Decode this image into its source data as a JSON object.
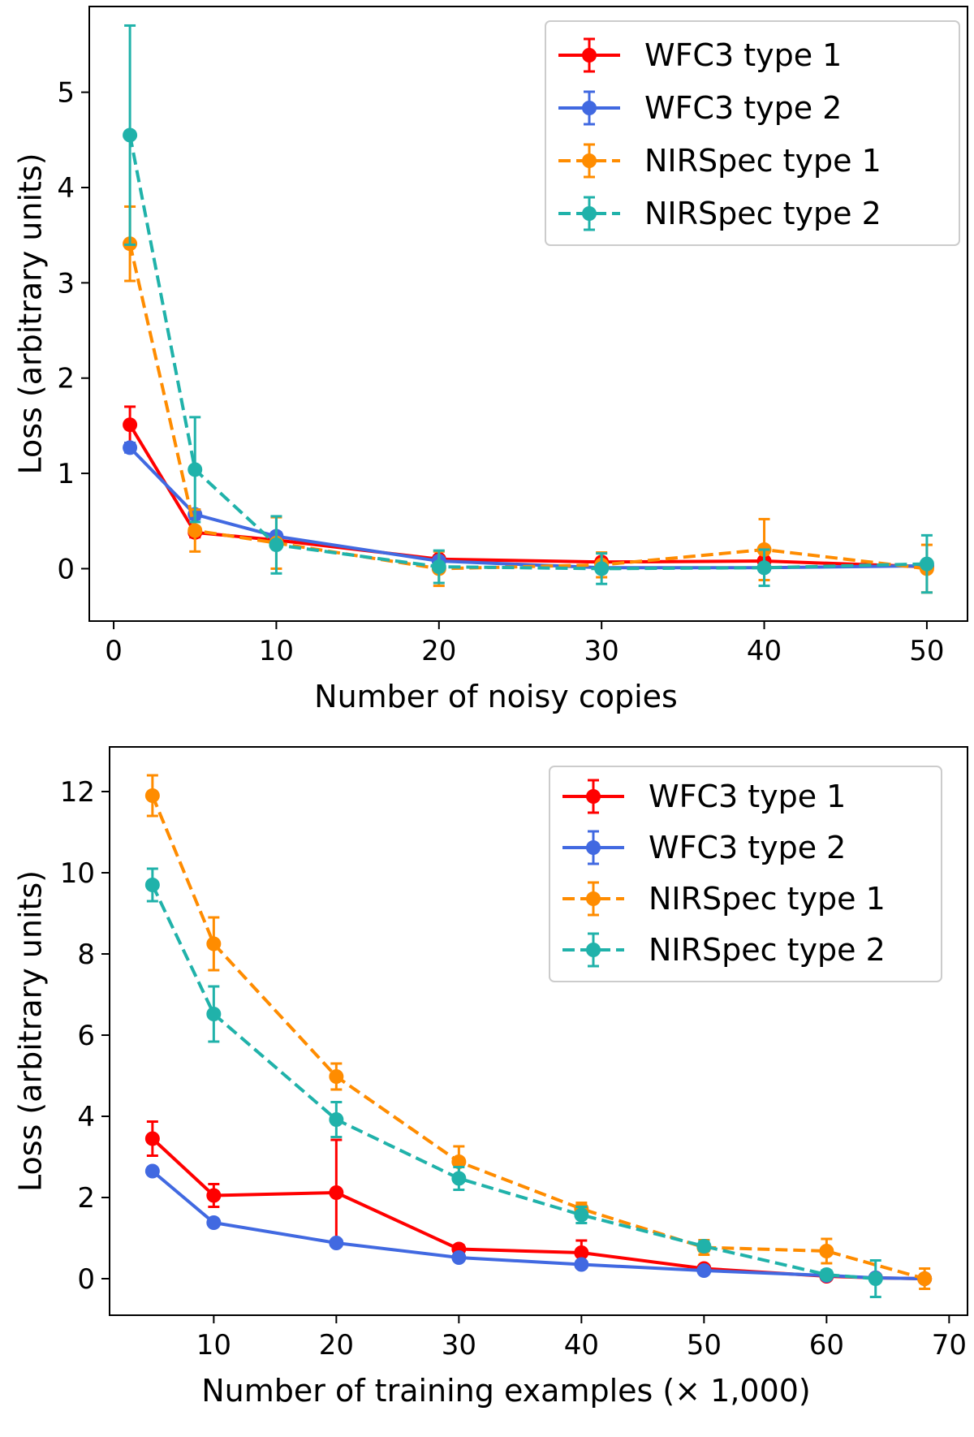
{
  "chart_data": [
    {
      "type": "line",
      "title": "",
      "xlabel": "Number of noisy copies",
      "ylabel": "Loss (arbitrary units)",
      "xlim": [
        -1.5,
        52.5
      ],
      "ylim": [
        -0.55,
        5.9
      ],
      "xticks": [
        0,
        10,
        20,
        30,
        40,
        50
      ],
      "yticks": [
        0,
        1,
        2,
        3,
        4,
        5
      ],
      "legend": "top-right",
      "series": [
        {
          "name": "WFC3 type 1",
          "color": "#ff0000",
          "style": "solid",
          "x": [
            1,
            5,
            10,
            20,
            30,
            40,
            50
          ],
          "y": [
            1.51,
            0.38,
            0.3,
            0.1,
            0.07,
            0.08,
            0.02
          ],
          "err": [
            0.19,
            0.05,
            0.04,
            0.03,
            0.03,
            0.03,
            0.02
          ]
        },
        {
          "name": "WFC3 type 2",
          "color": "#4169e1",
          "style": "solid",
          "x": [
            1,
            5,
            10,
            20,
            30,
            40,
            50
          ],
          "y": [
            1.27,
            0.57,
            0.34,
            0.08,
            0.01,
            0.01,
            0.03
          ],
          "err": [
            0.05,
            0.05,
            0.04,
            0.03,
            0.02,
            0.02,
            0.02
          ]
        },
        {
          "name": "NIRSpec type 1",
          "color": "#ff8c00",
          "style": "dashed",
          "x": [
            1,
            5,
            10,
            20,
            30,
            40,
            50
          ],
          "y": [
            3.41,
            0.4,
            0.27,
            0.0,
            0.04,
            0.2,
            0.0
          ],
          "err": [
            0.39,
            0.22,
            0.27,
            0.18,
            0.13,
            0.32,
            0.25
          ]
        },
        {
          "name": "NIRSpec type 2",
          "color": "#20b2aa",
          "style": "dashed",
          "x": [
            1,
            5,
            10,
            20,
            30,
            40,
            50
          ],
          "y": [
            4.55,
            1.04,
            0.25,
            0.02,
            0.0,
            0.01,
            0.05
          ],
          "err": [
            1.15,
            0.55,
            0.3,
            0.17,
            0.16,
            0.19,
            0.3
          ]
        }
      ]
    },
    {
      "type": "line",
      "title": "",
      "xlabel": "Number of training examples (× 1,000)",
      "ylabel": "Loss (arbitrary units)",
      "xlim": [
        1.5,
        71.5
      ],
      "ylim": [
        -0.9,
        13.1
      ],
      "xticks": [
        10,
        20,
        30,
        40,
        50,
        60,
        70
      ],
      "yticks": [
        0,
        2,
        4,
        6,
        8,
        10,
        12
      ],
      "legend": "top-right",
      "series": [
        {
          "name": "WFC3 type 1",
          "color": "#ff0000",
          "style": "solid",
          "x": [
            5,
            10,
            20,
            30,
            40,
            50,
            60,
            64,
            68
          ],
          "y": [
            3.45,
            2.05,
            2.12,
            0.73,
            0.64,
            0.25,
            0.06,
            0.02,
            0.0
          ],
          "err": [
            0.42,
            0.28,
            1.3,
            0.1,
            0.3,
            0.05,
            0.05,
            0.03,
            0.03
          ]
        },
        {
          "name": "WFC3 type 2",
          "color": "#4169e1",
          "style": "solid",
          "x": [
            5,
            10,
            20,
            30,
            40,
            50,
            60,
            64,
            68
          ],
          "y": [
            2.65,
            1.38,
            0.88,
            0.52,
            0.35,
            0.2,
            0.08,
            0.02,
            0.0
          ],
          "err": [
            0.05,
            0.05,
            0.05,
            0.05,
            0.05,
            0.05,
            0.05,
            0.03,
            0.03
          ]
        },
        {
          "name": "NIRSpec type 1",
          "color": "#ff8c00",
          "style": "dashed",
          "x": [
            5,
            10,
            20,
            30,
            40,
            50,
            60,
            68
          ],
          "y": [
            11.9,
            8.25,
            4.98,
            2.88,
            1.72,
            0.77,
            0.68,
            0.0
          ],
          "err": [
            0.5,
            0.65,
            0.32,
            0.38,
            0.15,
            0.18,
            0.3,
            0.25
          ]
        },
        {
          "name": "NIRSpec type 2",
          "color": "#20b2aa",
          "style": "dashed",
          "x": [
            5,
            10,
            20,
            30,
            40,
            50,
            60,
            64
          ],
          "y": [
            9.7,
            6.52,
            3.92,
            2.47,
            1.57,
            0.8,
            0.1,
            0.0
          ],
          "err": [
            0.4,
            0.68,
            0.43,
            0.28,
            0.2,
            0.12,
            0.1,
            0.45
          ]
        }
      ]
    }
  ]
}
